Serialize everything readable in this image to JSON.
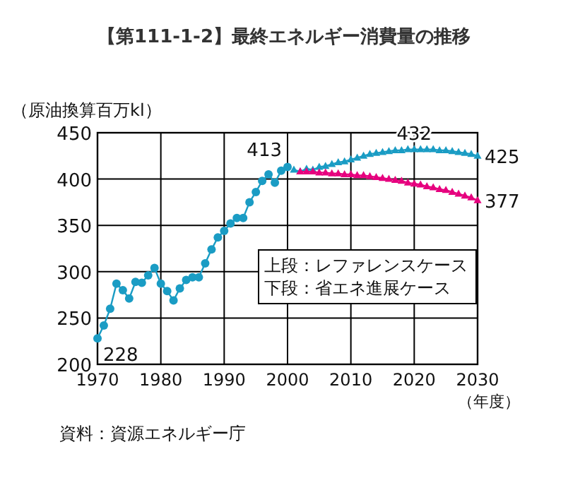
{
  "chart_data": {
    "type": "line",
    "title": "【第111-1-2】最終エネルギー消費量の推移",
    "ylabel": "（原油換算百万kl）",
    "xlabel": "（年度）",
    "xlim": [
      1970,
      2030
    ],
    "xticks": [
      1970,
      1980,
      1990,
      2000,
      2010,
      2020,
      2030
    ],
    "ylim": [
      200,
      450
    ],
    "yticks": [
      200,
      250,
      300,
      350,
      400,
      450
    ],
    "grid": true,
    "series": [
      {
        "color": "#1a9cc4",
        "marker": "circle",
        "x": [
          1970,
          1971,
          1972,
          1973,
          1974,
          1975,
          1976,
          1977,
          1978,
          1979,
          1980,
          1981,
          1982,
          1983,
          1984,
          1985,
          1986,
          1987,
          1988,
          1989,
          1990,
          1991,
          1992,
          1993,
          1994,
          1995,
          1996,
          1997,
          1998,
          1999,
          2000
        ],
        "values": [
          228,
          242,
          260,
          287,
          280,
          271,
          289,
          288,
          296,
          304,
          287,
          279,
          269,
          282,
          291,
          294,
          294,
          309,
          324,
          337,
          344,
          352,
          358,
          358,
          375,
          386,
          398,
          405,
          396,
          409,
          413
        ]
      },
      {
        "color": "#1a9cc4",
        "marker": "triangle",
        "x": [
          2001,
          2002,
          2003,
          2004,
          2005,
          2006,
          2007,
          2008,
          2009,
          2010,
          2011,
          2012,
          2013,
          2014,
          2015,
          2016,
          2017,
          2018,
          2019,
          2020,
          2021,
          2022,
          2023,
          2024,
          2025,
          2026,
          2027,
          2028,
          2029,
          2030
        ],
        "values": [
          410,
          408,
          411,
          410,
          413,
          414,
          416,
          418,
          419,
          421,
          423,
          425,
          427,
          428,
          429,
          430,
          431,
          431,
          432,
          432,
          432,
          432,
          432,
          431,
          431,
          430,
          429,
          428,
          427,
          425
        ]
      },
      {
        "color": "#e6007e",
        "marker": "triangle",
        "x": [
          2002,
          2003,
          2004,
          2005,
          2006,
          2007,
          2008,
          2009,
          2010,
          2011,
          2012,
          2013,
          2014,
          2015,
          2016,
          2017,
          2018,
          2019,
          2020,
          2021,
          2022,
          2023,
          2024,
          2025,
          2026,
          2027,
          2028,
          2029,
          2030
        ],
        "values": [
          408,
          408,
          408,
          407,
          407,
          406,
          406,
          405,
          405,
          404,
          404,
          403,
          402,
          401,
          400,
          399,
          398,
          396,
          395,
          394,
          392,
          391,
          389,
          388,
          386,
          384,
          382,
          380,
          377
        ]
      }
    ],
    "annotations": [
      {
        "text": "228",
        "x": 1970,
        "y": 228
      },
      {
        "text": "413",
        "x": 2000,
        "y": 413
      },
      {
        "text": "432",
        "x": 2020,
        "y": 432
      },
      {
        "text": "425",
        "x": 2030,
        "y": 425
      },
      {
        "text": "377",
        "x": 2030,
        "y": 377
      },
      "上段：レファレンスケース",
      "下段：省エネ進展ケース",
      "資料：資源エネルギー庁"
    ]
  }
}
